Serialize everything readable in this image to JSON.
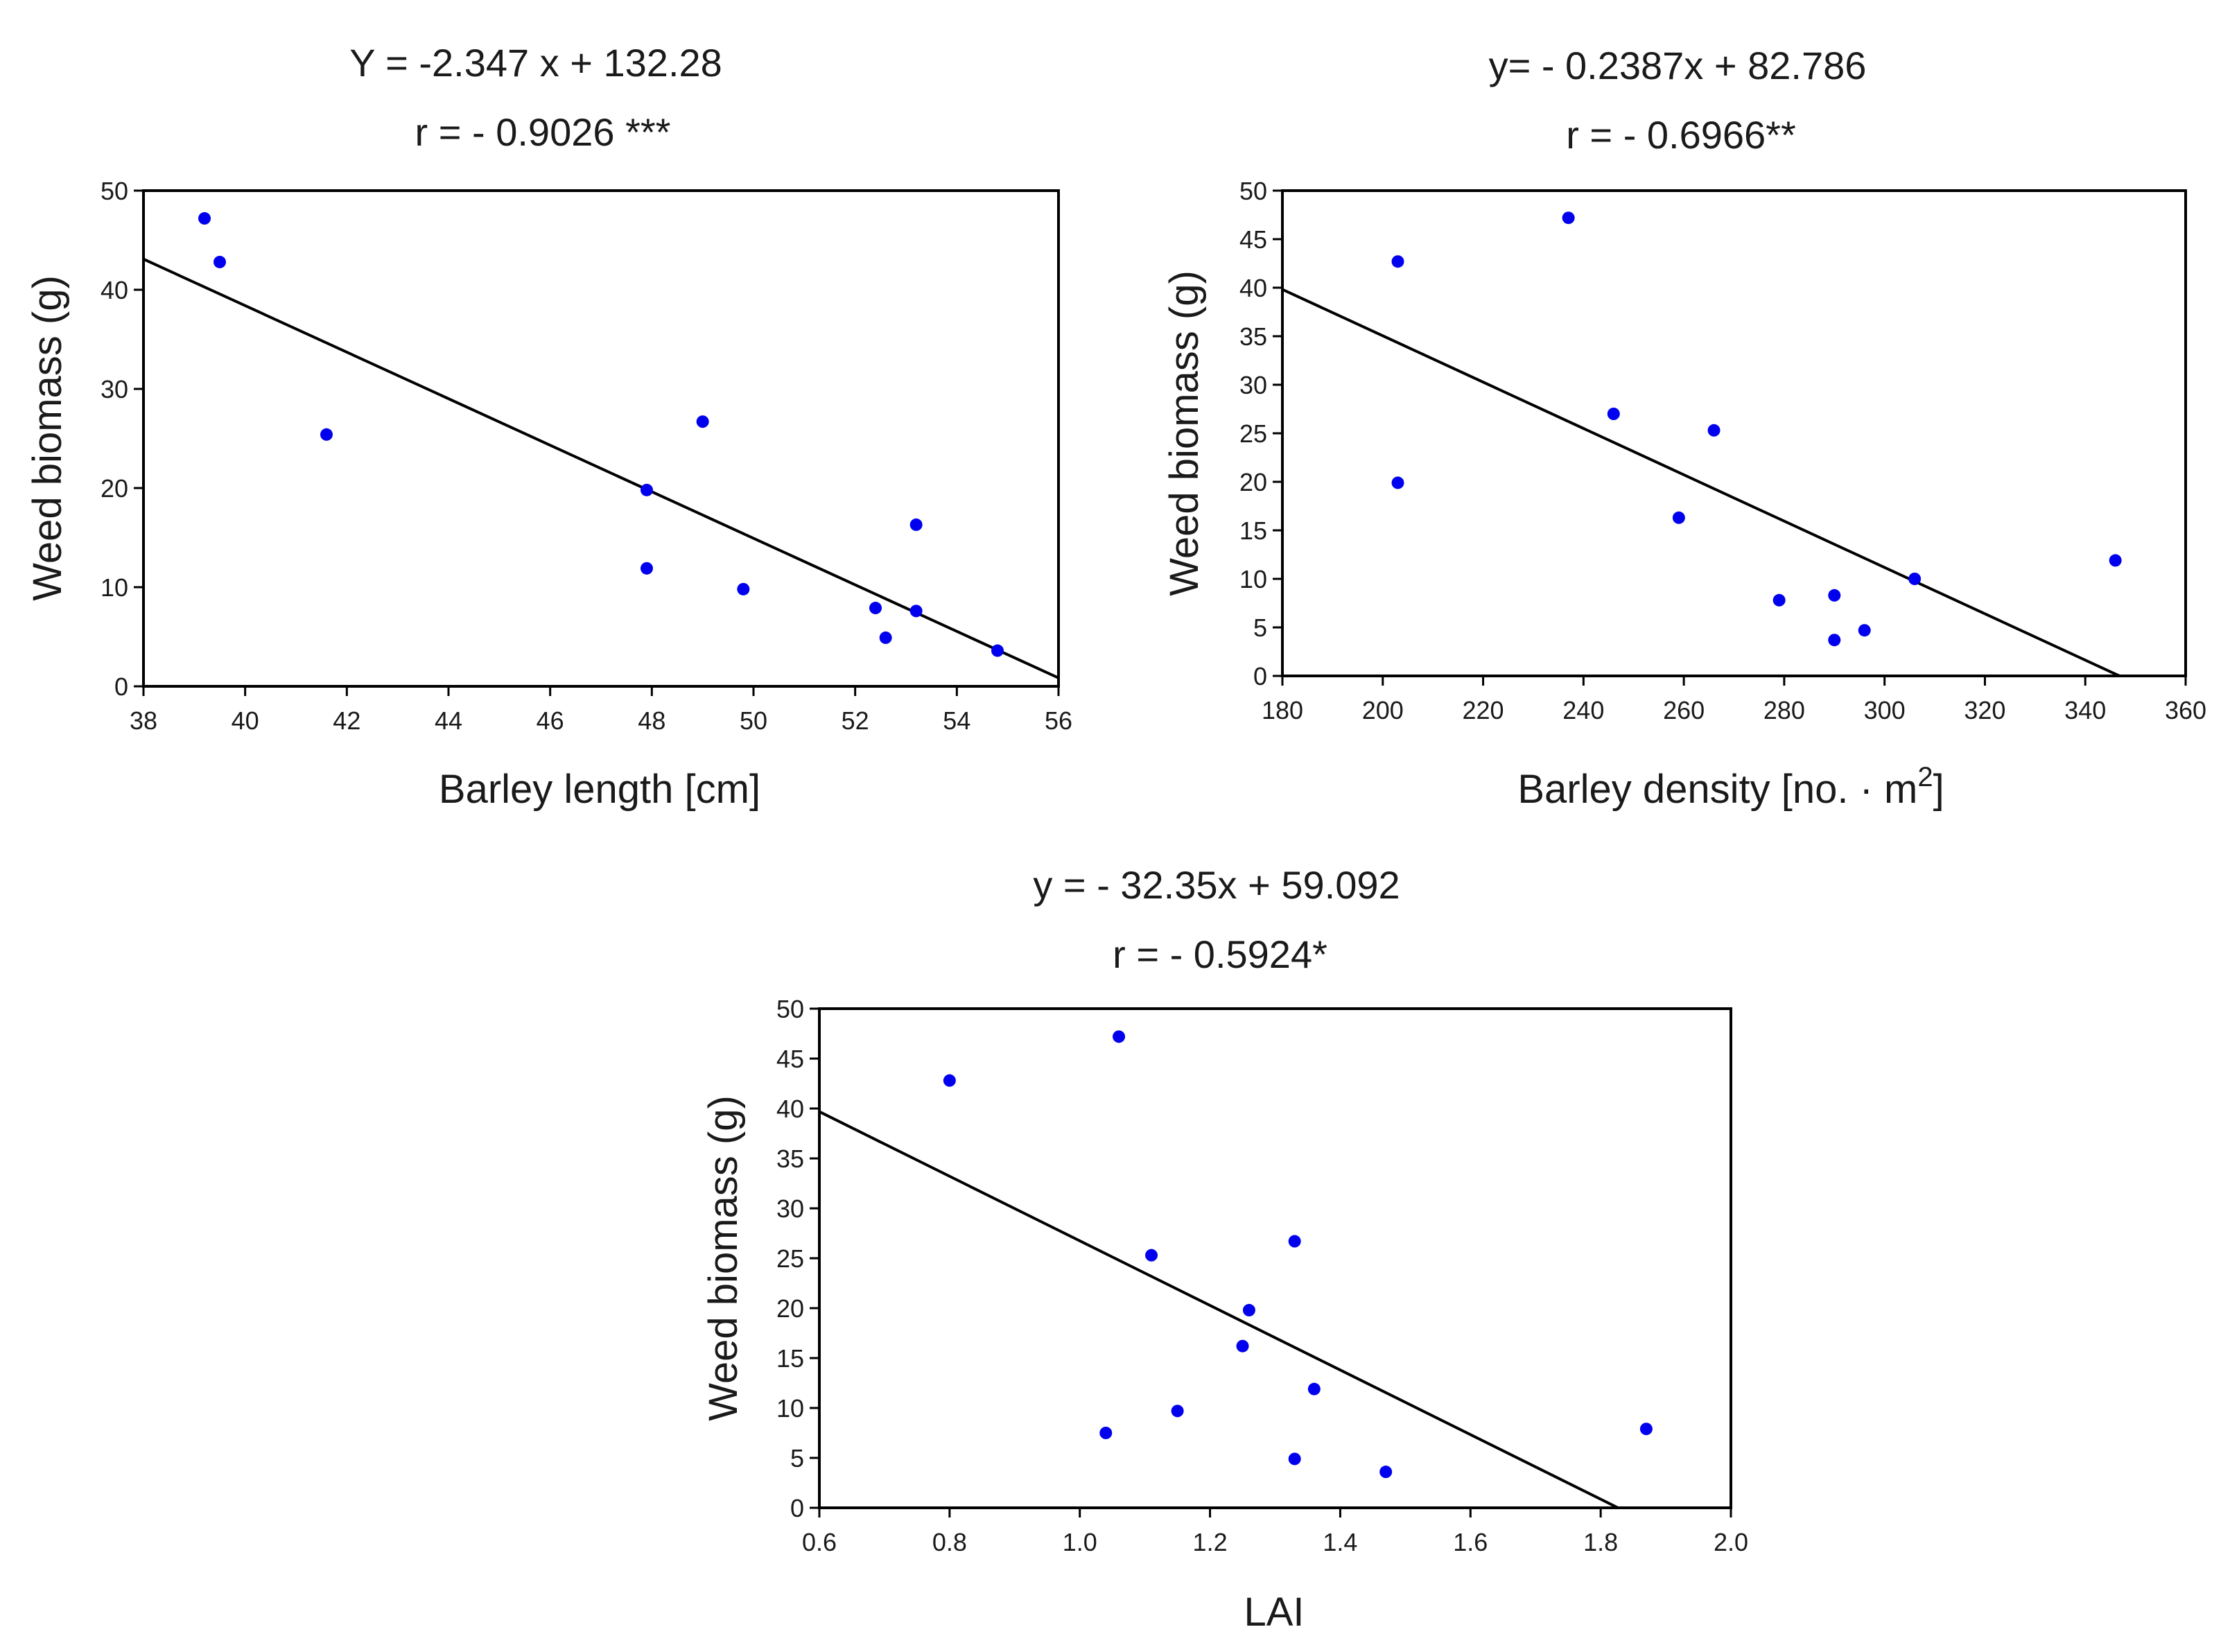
{
  "chart_data": [
    {
      "type": "scatter",
      "equation": "Y = -2.347 x + 132.28",
      "r_label": "r = - 0.9026 ***",
      "xlabel": "Barley length [cm]",
      "ylabel": "Weed biomass (g)",
      "xlim": [
        38,
        56
      ],
      "ylim": [
        0,
        50
      ],
      "xticks": [
        38,
        40,
        42,
        44,
        46,
        48,
        50,
        52,
        54,
        56
      ],
      "yticks": [
        0,
        10,
        20,
        30,
        40,
        50
      ],
      "xtick_decimals": 0,
      "trend": {
        "slope": -2.347,
        "intercept": 132.28
      },
      "x": [
        39.2,
        39.5,
        41.6,
        47.9,
        47.9,
        49.0,
        49.8,
        52.4,
        52.6,
        53.2,
        53.2,
        54.8
      ],
      "y": [
        47.2,
        42.8,
        25.4,
        19.8,
        11.9,
        26.7,
        9.8,
        7.9,
        4.9,
        16.3,
        7.6,
        3.6
      ]
    },
    {
      "type": "scatter",
      "equation": "y= - 0.2387x + 82.786",
      "r_label": "r = - 0.6966**",
      "xlabel": "Barley density [no. · m",
      "xlabel_sup": "2",
      "xlabel_end": "]",
      "ylabel": "Weed biomass (g)",
      "xlim": [
        180,
        360
      ],
      "ylim": [
        0,
        50
      ],
      "xticks": [
        180,
        200,
        220,
        240,
        260,
        280,
        300,
        320,
        340,
        360
      ],
      "yticks": [
        0,
        5,
        10,
        15,
        20,
        25,
        30,
        35,
        40,
        45,
        50
      ],
      "xtick_decimals": 0,
      "trend": {
        "slope": -0.2387,
        "intercept": 82.786
      },
      "x": [
        203,
        203,
        237,
        246,
        259,
        266,
        279,
        290,
        290,
        296,
        306,
        346
      ],
      "y": [
        42.7,
        19.9,
        47.2,
        27.0,
        16.3,
        25.3,
        7.8,
        8.3,
        3.7,
        4.7,
        10.0,
        11.9
      ]
    },
    {
      "type": "scatter",
      "equation": "y = - 32.35x + 59.092",
      "r_label": "r = - 0.5924*",
      "xlabel": "LAI",
      "ylabel": "Weed biomass (g)",
      "xlim": [
        0.6,
        2.0
      ],
      "ylim": [
        0,
        50
      ],
      "xticks": [
        0.6,
        0.8,
        1.0,
        1.2,
        1.4,
        1.6,
        1.8,
        2.0
      ],
      "yticks": [
        0,
        5,
        10,
        15,
        20,
        25,
        30,
        35,
        40,
        45,
        50
      ],
      "xtick_decimals": 1,
      "trend": {
        "slope": -32.35,
        "intercept": 59.092
      },
      "x": [
        0.8,
        1.06,
        1.04,
        1.11,
        1.15,
        1.25,
        1.26,
        1.33,
        1.33,
        1.36,
        1.47,
        1.87
      ],
      "y": [
        42.8,
        47.2,
        7.5,
        25.3,
        9.7,
        16.2,
        19.8,
        26.7,
        4.9,
        11.9,
        3.6,
        7.9
      ]
    }
  ],
  "colors": {
    "point": "#0000ee",
    "line": "#000000",
    "axis": "#000000"
  }
}
